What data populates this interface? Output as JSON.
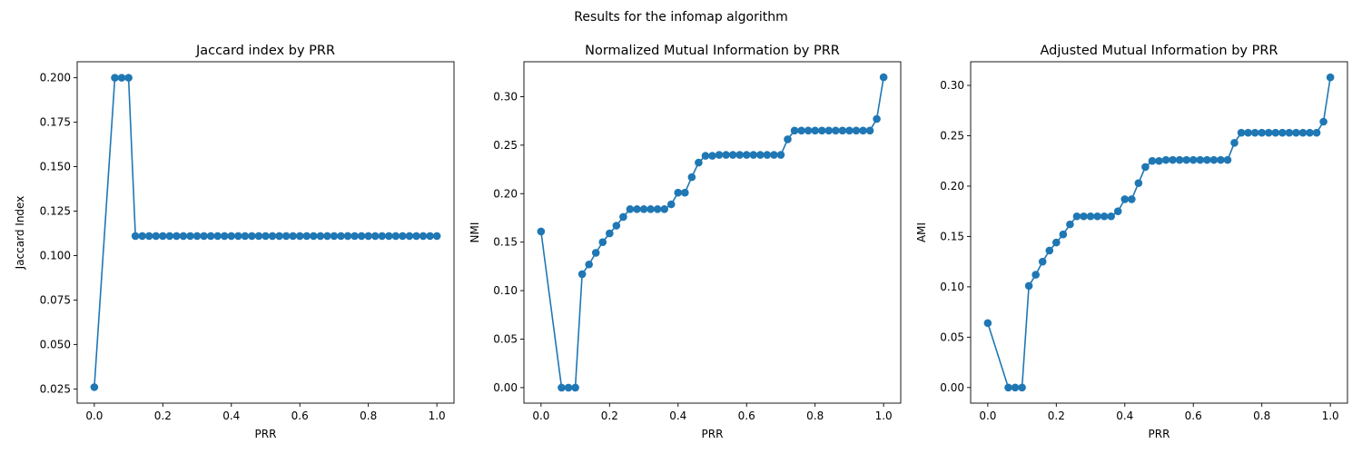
{
  "figure": {
    "suptitle": "Results for the infomap algorithm"
  },
  "chart_data": [
    {
      "type": "line",
      "title": "Jaccard index by PRR",
      "xlabel": "PRR",
      "ylabel": "Jaccard Index",
      "xlim": [
        -0.05,
        1.05
      ],
      "ylim": [
        0.017,
        0.209
      ],
      "xticks": [
        0.0,
        0.2,
        0.4,
        0.6,
        0.8,
        1.0
      ],
      "xtick_labels": [
        "0.0",
        "0.2",
        "0.4",
        "0.6",
        "0.8",
        "1.0"
      ],
      "yticks": [
        0.025,
        0.05,
        0.075,
        0.1,
        0.125,
        0.15,
        0.175,
        0.2
      ],
      "ytick_labels": [
        "0.025",
        "0.050",
        "0.075",
        "0.100",
        "0.125",
        "0.150",
        "0.175",
        "0.200"
      ],
      "marker": "circle",
      "color": "#1f77b4",
      "series": [
        {
          "x": [
            0.0,
            0.06,
            0.08,
            0.1,
            0.12,
            0.14,
            0.16,
            0.18,
            0.2,
            0.22,
            0.24,
            0.26,
            0.28,
            0.3,
            0.32,
            0.34,
            0.36,
            0.38,
            0.4,
            0.42,
            0.44,
            0.46,
            0.48,
            0.5,
            0.52,
            0.54,
            0.56,
            0.58,
            0.6,
            0.62,
            0.64,
            0.66,
            0.68,
            0.7,
            0.72,
            0.74,
            0.76,
            0.78,
            0.8,
            0.82,
            0.84,
            0.86,
            0.88,
            0.9,
            0.92,
            0.94,
            0.96,
            0.98,
            1.0
          ],
          "y": [
            0.026,
            0.2,
            0.2,
            0.2,
            0.111,
            0.111,
            0.111,
            0.111,
            0.111,
            0.111,
            0.111,
            0.111,
            0.111,
            0.111,
            0.111,
            0.111,
            0.111,
            0.111,
            0.111,
            0.111,
            0.111,
            0.111,
            0.111,
            0.111,
            0.111,
            0.111,
            0.111,
            0.111,
            0.111,
            0.111,
            0.111,
            0.111,
            0.111,
            0.111,
            0.111,
            0.111,
            0.111,
            0.111,
            0.111,
            0.111,
            0.111,
            0.111,
            0.111,
            0.111,
            0.111,
            0.111,
            0.111,
            0.111,
            0.111
          ]
        }
      ]
    },
    {
      "type": "line",
      "title": "Normalized Mutual Information by PRR",
      "xlabel": "PRR",
      "ylabel": "NMI",
      "xlim": [
        -0.05,
        1.05
      ],
      "ylim": [
        -0.016,
        0.336
      ],
      "xticks": [
        0.0,
        0.2,
        0.4,
        0.6,
        0.8,
        1.0
      ],
      "xtick_labels": [
        "0.0",
        "0.2",
        "0.4",
        "0.6",
        "0.8",
        "1.0"
      ],
      "yticks": [
        0.0,
        0.05,
        0.1,
        0.15,
        0.2,
        0.25,
        0.3
      ],
      "ytick_labels": [
        "0.00",
        "0.05",
        "0.10",
        "0.15",
        "0.20",
        "0.25",
        "0.30"
      ],
      "marker": "circle",
      "color": "#1f77b4",
      "series": [
        {
          "x": [
            0.0,
            0.06,
            0.08,
            0.1,
            0.12,
            0.14,
            0.16,
            0.18,
            0.2,
            0.22,
            0.24,
            0.26,
            0.28,
            0.3,
            0.32,
            0.34,
            0.36,
            0.38,
            0.4,
            0.42,
            0.44,
            0.46,
            0.48,
            0.5,
            0.52,
            0.54,
            0.56,
            0.58,
            0.6,
            0.62,
            0.64,
            0.66,
            0.68,
            0.7,
            0.72,
            0.74,
            0.76,
            0.78,
            0.8,
            0.82,
            0.84,
            0.86,
            0.88,
            0.9,
            0.92,
            0.94,
            0.96,
            0.98,
            1.0
          ],
          "y": [
            0.161,
            0.0,
            0.0,
            0.0,
            0.117,
            0.127,
            0.139,
            0.15,
            0.159,
            0.167,
            0.176,
            0.184,
            0.184,
            0.184,
            0.184,
            0.184,
            0.184,
            0.189,
            0.201,
            0.201,
            0.217,
            0.232,
            0.239,
            0.239,
            0.24,
            0.24,
            0.24,
            0.24,
            0.24,
            0.24,
            0.24,
            0.24,
            0.24,
            0.24,
            0.256,
            0.265,
            0.265,
            0.265,
            0.265,
            0.265,
            0.265,
            0.265,
            0.265,
            0.265,
            0.265,
            0.265,
            0.265,
            0.277,
            0.32
          ]
        }
      ]
    },
    {
      "type": "line",
      "title": "Adjusted Mutual Information by PRR",
      "xlabel": "PRR",
      "ylabel": "AMI",
      "xlim": [
        -0.05,
        1.05
      ],
      "ylim": [
        -0.0155,
        0.3235
      ],
      "xticks": [
        0.0,
        0.2,
        0.4,
        0.6,
        0.8,
        1.0
      ],
      "xtick_labels": [
        "0.0",
        "0.2",
        "0.4",
        "0.6",
        "0.8",
        "1.0"
      ],
      "yticks": [
        0.0,
        0.05,
        0.1,
        0.15,
        0.2,
        0.25,
        0.3
      ],
      "ytick_labels": [
        "0.00",
        "0.05",
        "0.10",
        "0.15",
        "0.20",
        "0.25",
        "0.30"
      ],
      "marker": "circle",
      "color": "#1f77b4",
      "series": [
        {
          "x": [
            0.0,
            0.06,
            0.08,
            0.1,
            0.12,
            0.14,
            0.16,
            0.18,
            0.2,
            0.22,
            0.24,
            0.26,
            0.28,
            0.3,
            0.32,
            0.34,
            0.36,
            0.38,
            0.4,
            0.42,
            0.44,
            0.46,
            0.48,
            0.5,
            0.52,
            0.54,
            0.56,
            0.58,
            0.6,
            0.62,
            0.64,
            0.66,
            0.68,
            0.7,
            0.72,
            0.74,
            0.76,
            0.78,
            0.8,
            0.82,
            0.84,
            0.86,
            0.88,
            0.9,
            0.92,
            0.94,
            0.96,
            0.98,
            1.0
          ],
          "y": [
            0.064,
            0.0,
            0.0,
            0.0,
            0.101,
            0.112,
            0.125,
            0.136,
            0.144,
            0.152,
            0.162,
            0.17,
            0.17,
            0.17,
            0.17,
            0.17,
            0.17,
            0.175,
            0.187,
            0.187,
            0.203,
            0.219,
            0.225,
            0.225,
            0.226,
            0.226,
            0.226,
            0.226,
            0.226,
            0.226,
            0.226,
            0.226,
            0.226,
            0.226,
            0.243,
            0.253,
            0.253,
            0.253,
            0.253,
            0.253,
            0.253,
            0.253,
            0.253,
            0.253,
            0.253,
            0.253,
            0.253,
            0.264,
            0.308
          ]
        }
      ]
    }
  ]
}
